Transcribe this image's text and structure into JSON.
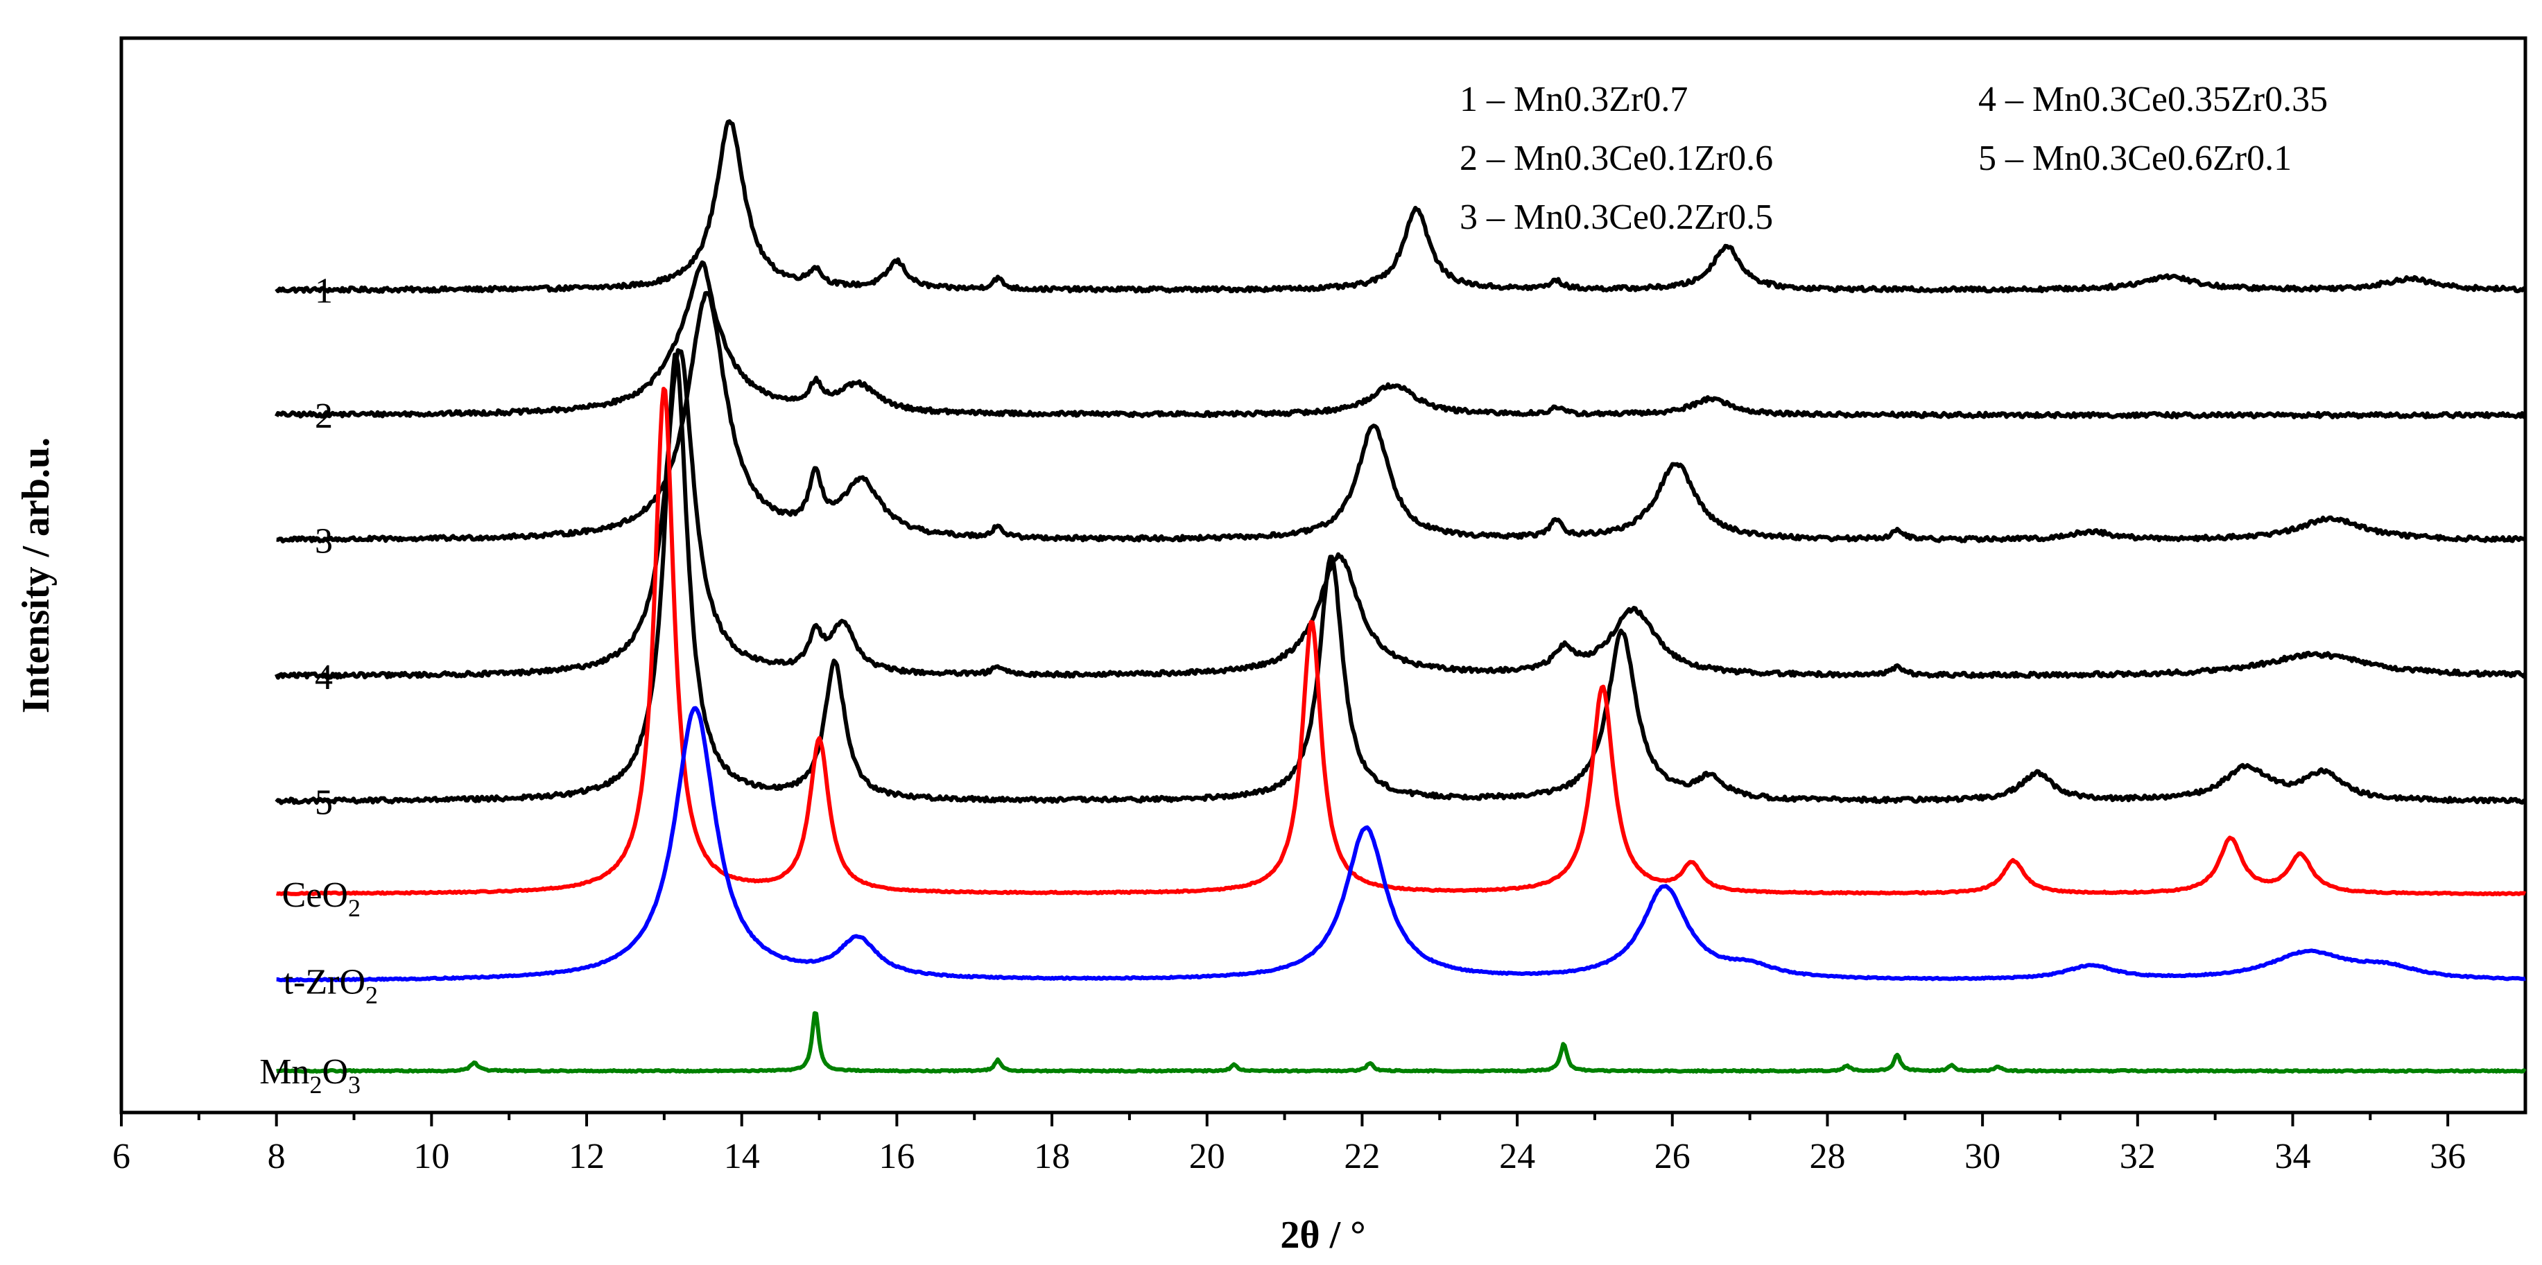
{
  "chart_data": {
    "type": "line",
    "title": "",
    "xlabel": "2θ / °",
    "ylabel": "Intensity / arb.u.",
    "xlim": [
      6,
      37
    ],
    "x_ticks": [
      6,
      8,
      10,
      12,
      14,
      16,
      18,
      20,
      22,
      24,
      26,
      28,
      30,
      32,
      34,
      36
    ],
    "grid": false,
    "legend_position": "top-right",
    "legend": [
      "1 – Mn0.3Zr0.7",
      "2 – Mn0.3Ce0.1Zr0.6",
      "3 – Mn0.3Ce0.2Zr0.5",
      "4 – Mn0.3Ce0.35Zr0.35",
      "5 – Mn0.3Ce0.6Zr0.1"
    ],
    "series": [
      {
        "name": "1",
        "label": "1",
        "label_sub": "",
        "color": "#000000",
        "baseline": 1.0,
        "tilt": 0.0,
        "peaks": [
          [
            13.85,
            0.22,
            0.31
          ],
          [
            14.95,
            0.1,
            0.03
          ],
          [
            16.0,
            0.15,
            0.05
          ],
          [
            17.3,
            0.08,
            0.02
          ],
          [
            22.7,
            0.2,
            0.15
          ],
          [
            24.5,
            0.1,
            0.015
          ],
          [
            26.7,
            0.22,
            0.08
          ],
          [
            32.4,
            0.4,
            0.025
          ],
          [
            35.5,
            0.4,
            0.02
          ]
        ]
      },
      {
        "name": "2",
        "label": "2",
        "label_sub": "",
        "color": "#000000",
        "baseline": 0.77,
        "tilt": 0.0,
        "peaks": [
          [
            13.45,
            0.4,
            0.2
          ],
          [
            13.5,
            0.12,
            0.08
          ],
          [
            14.95,
            0.1,
            0.04
          ],
          [
            15.5,
            0.3,
            0.05
          ],
          [
            22.4,
            0.35,
            0.055
          ],
          [
            24.5,
            0.1,
            0.012
          ],
          [
            26.5,
            0.3,
            0.03
          ]
        ]
      },
      {
        "name": "3",
        "label": "3",
        "label_sub": "",
        "color": "#000000",
        "baseline": 0.54,
        "tilt": 0.0,
        "peaks": [
          [
            13.55,
            0.3,
            0.45
          ],
          [
            14.95,
            0.1,
            0.09
          ],
          [
            15.55,
            0.3,
            0.1
          ],
          [
            17.3,
            0.08,
            0.02
          ],
          [
            22.15,
            0.25,
            0.21
          ],
          [
            24.5,
            0.1,
            0.03
          ],
          [
            26.05,
            0.3,
            0.14
          ],
          [
            28.9,
            0.1,
            0.015
          ],
          [
            31.4,
            0.3,
            0.015
          ],
          [
            34.5,
            0.5,
            0.04
          ]
        ]
      },
      {
        "name": "4",
        "label": "4",
        "label_sub": "",
        "color": "#000000",
        "baseline": 0.29,
        "tilt": 0.0,
        "peaks": [
          [
            13.2,
            0.22,
            0.6
          ],
          [
            14.95,
            0.1,
            0.06
          ],
          [
            15.3,
            0.2,
            0.09
          ],
          [
            17.3,
            0.08,
            0.015
          ],
          [
            21.7,
            0.32,
            0.22
          ],
          [
            24.6,
            0.15,
            0.04
          ],
          [
            25.5,
            0.35,
            0.12
          ],
          [
            28.9,
            0.1,
            0.015
          ],
          [
            34.3,
            0.8,
            0.04
          ]
        ]
      },
      {
        "name": "5",
        "label": "5",
        "label_sub": "",
        "color": "#000000",
        "baseline": 0.06,
        "tilt": 0.0,
        "peaks": [
          [
            13.15,
            0.18,
            0.82
          ],
          [
            15.2,
            0.16,
            0.25
          ],
          [
            21.6,
            0.18,
            0.45
          ],
          [
            25.35,
            0.22,
            0.31
          ],
          [
            26.5,
            0.2,
            0.04
          ],
          [
            30.7,
            0.25,
            0.05
          ],
          [
            33.4,
            0.35,
            0.06
          ],
          [
            34.4,
            0.3,
            0.05
          ]
        ]
      },
      {
        "name": "CeO2",
        "label": "CeO",
        "label_sub": "2",
        "color": "#ff0000",
        "baseline": -0.11,
        "tilt": 0.0,
        "peaks": [
          [
            13.0,
            0.15,
            0.93
          ],
          [
            15.0,
            0.15,
            0.28
          ],
          [
            21.35,
            0.15,
            0.5
          ],
          [
            25.1,
            0.17,
            0.38
          ],
          [
            26.25,
            0.15,
            0.05
          ],
          [
            30.4,
            0.17,
            0.06
          ],
          [
            33.2,
            0.18,
            0.1
          ],
          [
            34.1,
            0.18,
            0.07
          ]
        ]
      },
      {
        "name": "t-ZrO2",
        "label": "t-ZrO",
        "label_sub": "2",
        "color": "#0000ff",
        "baseline": -0.27,
        "tilt": 0.0,
        "peaks": [
          [
            13.4,
            0.32,
            0.5
          ],
          [
            15.5,
            0.3,
            0.07
          ],
          [
            22.05,
            0.32,
            0.28
          ],
          [
            25.9,
            0.35,
            0.17
          ],
          [
            27.0,
            0.4,
            0.02
          ],
          [
            31.4,
            0.4,
            0.025
          ],
          [
            34.2,
            0.6,
            0.05
          ],
          [
            35.2,
            0.5,
            0.02
          ]
        ]
      },
      {
        "name": "Mn2O3",
        "label": "Mn",
        "label_sub": "2",
        "label_tail": "O",
        "label_sub2": "3",
        "color": "#008000",
        "baseline": -0.435,
        "tilt": 0.0,
        "peaks": [
          [
            10.55,
            0.06,
            0.015
          ],
          [
            14.95,
            0.05,
            0.11
          ],
          [
            17.3,
            0.05,
            0.02
          ],
          [
            20.35,
            0.05,
            0.012
          ],
          [
            22.1,
            0.05,
            0.015
          ],
          [
            24.6,
            0.05,
            0.05
          ],
          [
            28.25,
            0.05,
            0.01
          ],
          [
            28.9,
            0.05,
            0.03
          ],
          [
            29.6,
            0.05,
            0.01
          ],
          [
            30.2,
            0.05,
            0.008
          ]
        ]
      }
    ]
  }
}
